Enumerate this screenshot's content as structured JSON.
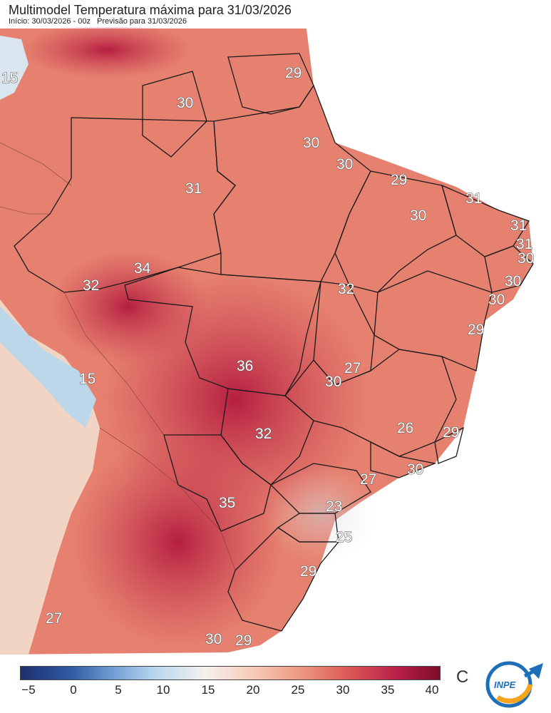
{
  "header": {
    "title": "Multimodel Temperatura máxima para 31/03/2026",
    "start_label": "Início: 30/03/2026 - 00z",
    "forecast_label": "Previsão para 31/03/2026"
  },
  "legend": {
    "ticks": [
      "−5",
      "0",
      "5",
      "10",
      "15",
      "20",
      "25",
      "30",
      "35",
      "40"
    ],
    "unit": "C",
    "range": [
      -5,
      40
    ]
  },
  "logo": {
    "text": "INPE"
  },
  "colors": {
    "cold": "#1d2f6f",
    "neutral": "#f4f1ef",
    "warm": "#dd5a57",
    "hot": "#7a0d2c"
  },
  "map_labels": [
    {
      "value": "15"
    },
    {
      "value": "29"
    },
    {
      "value": "30"
    },
    {
      "value": "30"
    },
    {
      "value": "30"
    },
    {
      "value": "31"
    },
    {
      "value": "29"
    },
    {
      "value": "31"
    },
    {
      "value": "30"
    },
    {
      "value": "31"
    },
    {
      "value": "31"
    },
    {
      "value": "30"
    },
    {
      "value": "34"
    },
    {
      "value": "32"
    },
    {
      "value": "32"
    },
    {
      "value": "30"
    },
    {
      "value": "30"
    },
    {
      "value": "29"
    },
    {
      "value": "15"
    },
    {
      "value": "36"
    },
    {
      "value": "27"
    },
    {
      "value": "30"
    },
    {
      "value": "26"
    },
    {
      "value": "29"
    },
    {
      "value": "32"
    },
    {
      "value": "30"
    },
    {
      "value": "27"
    },
    {
      "value": "35"
    },
    {
      "value": "23"
    },
    {
      "value": "25"
    },
    {
      "value": "29"
    },
    {
      "value": "27"
    },
    {
      "value": "30"
    },
    {
      "value": "29"
    }
  ]
}
